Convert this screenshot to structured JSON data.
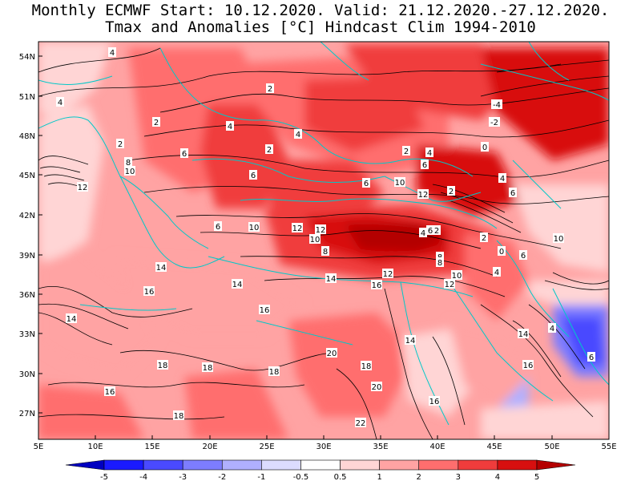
{
  "title": {
    "line1": "Monthly ECMWF Start: 10.12.2020. Valid: 21.12.2020.-27.12.2020.",
    "line2": "Tmax and Anomalies [°C] Hindcast Clim 1994-2010"
  },
  "axes": {
    "lat_labels": [
      "54N",
      "51N",
      "48N",
      "45N",
      "42N",
      "39N",
      "36N",
      "33N",
      "30N",
      "27N"
    ],
    "lon_labels": [
      "5E",
      "10E",
      "15E",
      "20E",
      "25E",
      "30E",
      "35E",
      "40E",
      "45E",
      "50E",
      "55E"
    ]
  },
  "colorbar": {
    "labels": [
      "-5",
      "-4",
      "-3",
      "-2",
      "-1",
      "-0.5",
      "0.5",
      "1",
      "2",
      "3",
      "4",
      "5"
    ],
    "colors": [
      "#0000c0",
      "#1a1aff",
      "#4a4aff",
      "#7d7dff",
      "#b0b0ff",
      "#dcdcff",
      "#ffffff",
      "#ffd5d5",
      "#ffa3a3",
      "#ff6e6e",
      "#f03c3c",
      "#d80f0f",
      "#b40000"
    ]
  },
  "contour_labels": [
    {
      "t": "4"
    },
    {
      "t": "4"
    },
    {
      "t": "2"
    },
    {
      "t": "2"
    },
    {
      "t": "4"
    },
    {
      "t": "2"
    },
    {
      "t": "4"
    },
    {
      "t": "6"
    },
    {
      "t": "2"
    },
    {
      "t": "-4"
    },
    {
      "t": "-2"
    },
    {
      "t": "0"
    },
    {
      "t": "6"
    },
    {
      "t": "6"
    },
    {
      "t": "2"
    },
    {
      "t": "4"
    },
    {
      "t": "6"
    },
    {
      "t": "4"
    },
    {
      "t": "12"
    },
    {
      "t": "10"
    },
    {
      "t": "8"
    },
    {
      "t": "10"
    },
    {
      "t": "12"
    },
    {
      "t": "2"
    },
    {
      "t": "6"
    },
    {
      "t": "6"
    },
    {
      "t": "10"
    },
    {
      "t": "12"
    },
    {
      "t": "12"
    },
    {
      "t": "10"
    },
    {
      "t": "8"
    },
    {
      "t": "4"
    },
    {
      "t": "6"
    },
    {
      "t": "2"
    },
    {
      "t": "2"
    },
    {
      "t": "0"
    },
    {
      "t": "10"
    },
    {
      "t": "8"
    },
    {
      "t": "8"
    },
    {
      "t": "14"
    },
    {
      "t": "14"
    },
    {
      "t": "16"
    },
    {
      "t": "16"
    },
    {
      "t": "12"
    },
    {
      "t": "12"
    },
    {
      "t": "10"
    },
    {
      "t": "4"
    },
    {
      "t": "6"
    },
    {
      "t": "14"
    },
    {
      "t": "14"
    },
    {
      "t": "16"
    },
    {
      "t": "14"
    },
    {
      "t": "4"
    },
    {
      "t": "14"
    },
    {
      "t": "6"
    },
    {
      "t": "20"
    },
    {
      "t": "18"
    },
    {
      "t": "18"
    },
    {
      "t": "18"
    },
    {
      "t": "16"
    },
    {
      "t": "18"
    },
    {
      "t": "20"
    },
    {
      "t": "16"
    },
    {
      "t": "18"
    },
    {
      "t": "22"
    },
    {
      "t": "16"
    }
  ]
}
